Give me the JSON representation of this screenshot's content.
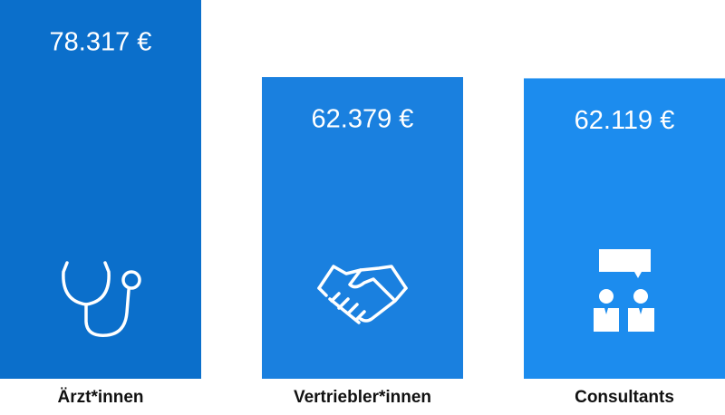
{
  "chart_data": {
    "type": "bar",
    "categories": [
      "Ärzt*innen",
      "Vertriebler*innen",
      "Consultants"
    ],
    "values": [
      78317,
      62379,
      62119
    ],
    "value_labels": [
      "78.317 €",
      "62.379 €",
      "62.119 €"
    ],
    "colors": [
      "#0b6fcb",
      "#1a80df",
      "#1c8cee"
    ]
  }
}
